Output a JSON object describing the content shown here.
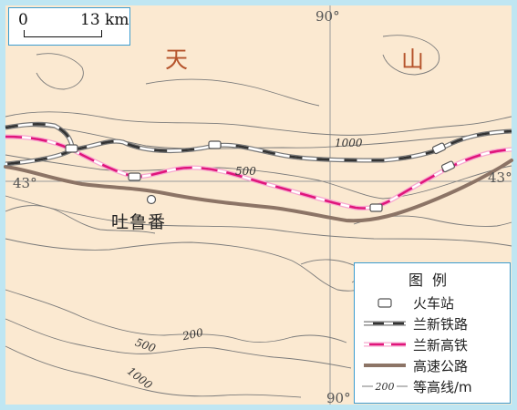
{
  "map": {
    "mountain_chars": [
      "天",
      "山"
    ],
    "longitude_label": "90°",
    "latitude_label": "43°",
    "city": "吐鲁番"
  },
  "scale": {
    "zero": "0",
    "value": "13 km"
  },
  "contours": {
    "labels": [
      "1000",
      "500",
      "200",
      "500",
      "1000"
    ]
  },
  "legend": {
    "title": "图例",
    "items": [
      {
        "label": "火车站",
        "symbol": "station-icon"
      },
      {
        "label": "兰新铁路",
        "symbol": "railway-line",
        "color": "#333333"
      },
      {
        "label": "兰新高铁",
        "symbol": "high-speed-rail-line",
        "color": "#e0157b"
      },
      {
        "label": "高速公路",
        "symbol": "expressway-line",
        "color": "#8c7466"
      },
      {
        "label": "等高线/m",
        "symbol": "contour-line",
        "sample_value": "200"
      }
    ]
  },
  "colors": {
    "land": "#fbe9d1",
    "frame": "#bfe6f2",
    "railway": "#333333",
    "high_speed_rail": "#e0157b",
    "expressway": "#8c7466",
    "contour": "#7a7a7a"
  }
}
